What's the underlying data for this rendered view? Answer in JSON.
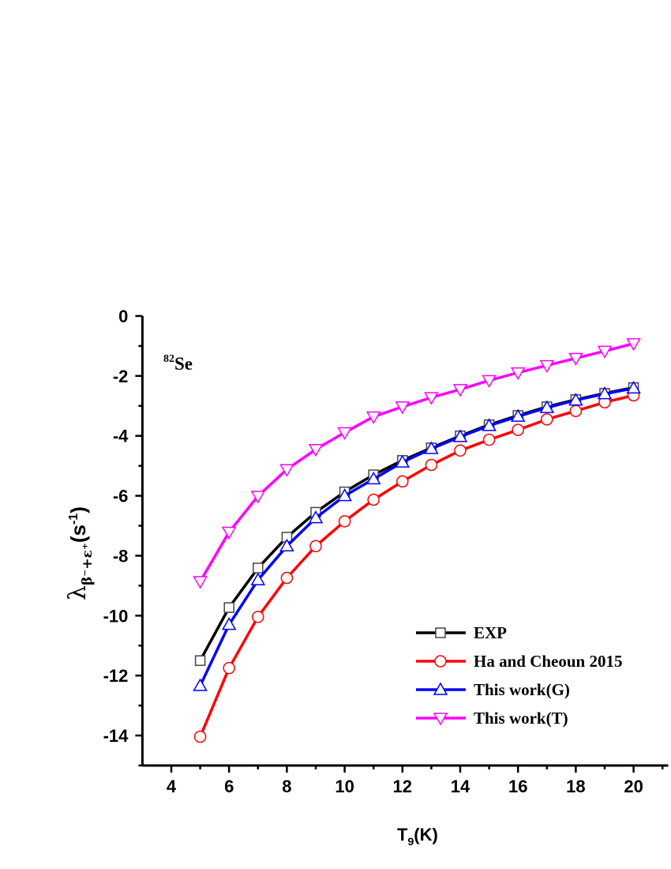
{
  "chart_data": {
    "type": "line",
    "title": "",
    "annotation": {
      "mass": "82",
      "element": "Se"
    },
    "xlabel": {
      "main": "T",
      "sub": "9",
      "rest": "(K)"
    },
    "ylabel": {
      "main": "λ",
      "sub": "β⁻+ε⁺",
      "rest": "(s",
      "sup": "-1",
      "close": ")"
    },
    "xlim": [
      3,
      21.2
    ],
    "ylim": [
      -15,
      0
    ],
    "xticks": [
      4,
      6,
      8,
      10,
      12,
      14,
      16,
      18,
      20
    ],
    "yticks": [
      0,
      -2,
      -4,
      -6,
      -8,
      -10,
      -12,
      -14
    ],
    "grid": false,
    "legend_position": "bottom-right",
    "x": [
      5,
      6,
      7,
      8,
      9,
      10,
      11,
      12,
      13,
      14,
      15,
      16,
      17,
      18,
      19,
      20
    ],
    "series": [
      {
        "name": "EXP",
        "color": "#000000",
        "marker": "square",
        "values": [
          -11.5,
          -9.73,
          -8.41,
          -7.38,
          -6.55,
          -5.87,
          -5.3,
          -4.82,
          -4.4,
          -4.0,
          -3.63,
          -3.32,
          -3.03,
          -2.79,
          -2.58,
          -2.39
        ]
      },
      {
        "name": "Ha and Cheoun 2015",
        "color": "#ff0000",
        "marker": "circle",
        "values": [
          -14.04,
          -11.75,
          -10.04,
          -8.74,
          -7.68,
          -6.85,
          -6.13,
          -5.52,
          -4.97,
          -4.49,
          -4.13,
          -3.8,
          -3.45,
          -3.17,
          -2.88,
          -2.65
        ]
      },
      {
        "name": "This work(G)",
        "color": "#0000ff",
        "marker": "triangle-up",
        "values": [
          -12.34,
          -10.3,
          -8.81,
          -7.68,
          -6.74,
          -6.0,
          -5.44,
          -4.88,
          -4.43,
          -4.03,
          -3.66,
          -3.35,
          -3.06,
          -2.81,
          -2.6,
          -2.41
        ]
      },
      {
        "name": "This work(T)",
        "color": "#ff00ff",
        "marker": "triangle-down",
        "values": [
          -8.86,
          -7.21,
          -6.01,
          -5.12,
          -4.45,
          -3.89,
          -3.36,
          -3.03,
          -2.72,
          -2.45,
          -2.15,
          -1.89,
          -1.65,
          -1.41,
          -1.17,
          -0.92
        ]
      }
    ]
  }
}
